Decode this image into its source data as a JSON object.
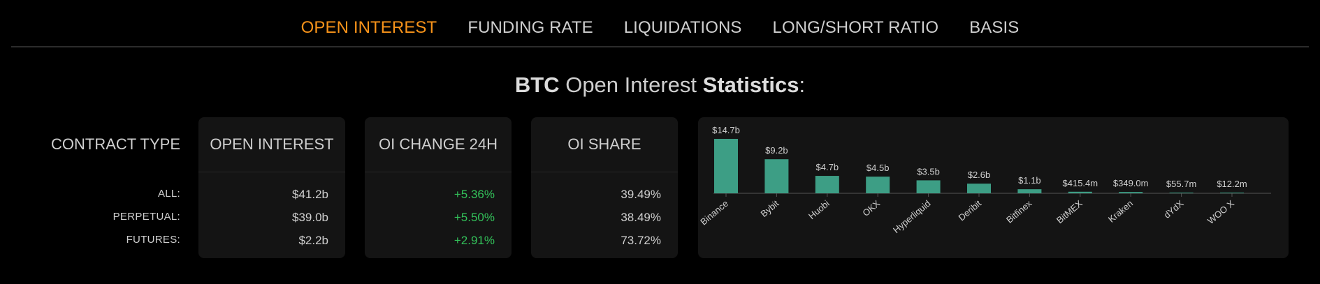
{
  "nav": {
    "tabs": [
      {
        "label": "OPEN INTEREST",
        "active": true
      },
      {
        "label": "FUNDING RATE",
        "active": false
      },
      {
        "label": "LIQUIDATIONS",
        "active": false
      },
      {
        "label": "LONG/SHORT RATIO",
        "active": false
      },
      {
        "label": "BASIS",
        "active": false
      }
    ],
    "active_color": "#f7931a"
  },
  "heading": {
    "asset": "BTC",
    "middle": "Open Interest",
    "bold_word": "Statistics",
    "suffix": ":"
  },
  "table": {
    "label_header": "CONTRACT TYPE",
    "row_labels": [
      "ALL:",
      "PERPETUAL:",
      "FUTURES:"
    ],
    "columns": [
      {
        "header": "OPEN INTEREST",
        "values": [
          "$41.2b",
          "$39.0b",
          "$2.2b"
        ]
      },
      {
        "header": "OI CHANGE 24H",
        "values": [
          "+5.36%",
          "+5.50%",
          "+2.91%"
        ],
        "color": "#33c25a"
      },
      {
        "header": "OI SHARE",
        "values": [
          "39.49%",
          "38.49%",
          "73.72%"
        ]
      }
    ]
  },
  "chart_data": {
    "type": "bar",
    "title": "",
    "xlabel": "",
    "ylabel": "",
    "categories": [
      "Binance",
      "Bybit",
      "Huobi",
      "OKX",
      "Hyperliquid",
      "Deribit",
      "Bitfinex",
      "BitMEX",
      "Kraken",
      "dYdX",
      "WOO X"
    ],
    "values": [
      14.7,
      9.2,
      4.7,
      4.5,
      3.5,
      2.6,
      1.1,
      0.4154,
      0.349,
      0.0557,
      0.0122
    ],
    "units": "billions USD",
    "data_labels": [
      "$14.7b",
      "$9.2b",
      "$4.7b",
      "$4.5b",
      "$3.5b",
      "$2.6b",
      "$1.1b",
      "$415.4m",
      "$349.0m",
      "$55.7m",
      "$12.2m"
    ],
    "ylim": [
      0,
      14.7
    ],
    "grid": false,
    "bar_color": "#3d9e85"
  }
}
